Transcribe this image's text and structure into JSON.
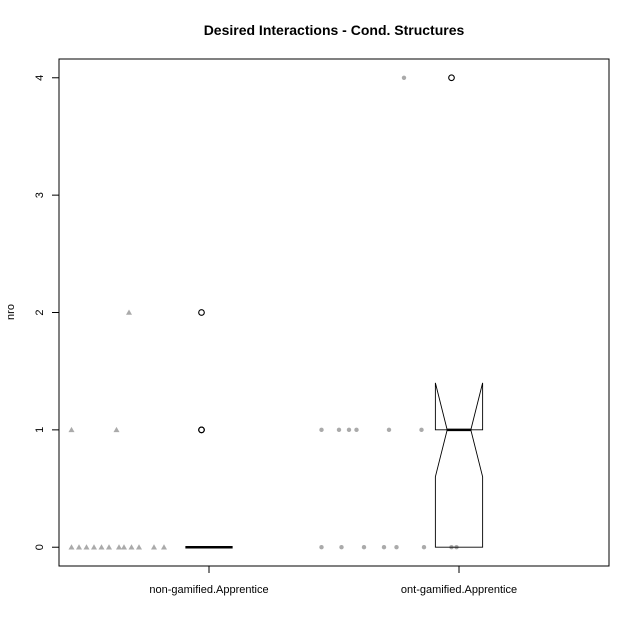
{
  "chart_data": {
    "type": "box",
    "title": "Desired Interactions - Cond. Structures",
    "xlabel": "",
    "ylabel": "nro",
    "ylim": [
      0,
      4
    ],
    "yticks": [
      "0",
      "1",
      "2",
      "3",
      "4"
    ],
    "categories": [
      "non-gamified.Apprentice",
      "ont-gamified.Apprentice"
    ],
    "boxes": [
      {
        "category": "non-gamified.Apprentice",
        "q1": 0,
        "median": 0,
        "q3": 0,
        "whisker_low": 0,
        "whisker_high": 0,
        "notch_low": 0,
        "notch_high": 0,
        "outliers": [
          1,
          1,
          2
        ]
      },
      {
        "category": "ont-gamified.Apprentice",
        "q1": 0,
        "median": 1,
        "q3": 1,
        "whisker_low": 0,
        "whisker_high": 1,
        "notch_low": 0.6,
        "notch_high": 1.4,
        "outliers": [
          4
        ]
      }
    ],
    "points": [
      {
        "category": "non-gamified.Apprentice",
        "marker": "triangle",
        "color": "#aaaaaa",
        "x": [
          -0.55,
          -0.52,
          -0.49,
          -0.46,
          -0.43,
          -0.4,
          -0.36,
          -0.34,
          -0.31,
          -0.28,
          -0.22,
          -0.18,
          -0.55,
          -0.37,
          -0.32
        ],
        "y": [
          0,
          0,
          0,
          0,
          0,
          0,
          0,
          0,
          0,
          0,
          0,
          0,
          1,
          1,
          2
        ]
      },
      {
        "category": "ont-gamified.Apprentice",
        "marker": "circle",
        "color": "#aaaaaa",
        "x": [
          -0.55,
          -0.47,
          -0.38,
          -0.3,
          -0.25,
          -0.14,
          -0.03,
          -0.01,
          -0.55,
          -0.48,
          -0.44,
          -0.41,
          -0.28,
          -0.15,
          -0.22
        ],
        "y": [
          0,
          0,
          0,
          0,
          0,
          0,
          0,
          0,
          1,
          1,
          1,
          1,
          1,
          1,
          4
        ]
      }
    ],
    "colors": {
      "axis": "#000000",
      "points": "#aaaaaa",
      "box": "#000000"
    }
  }
}
